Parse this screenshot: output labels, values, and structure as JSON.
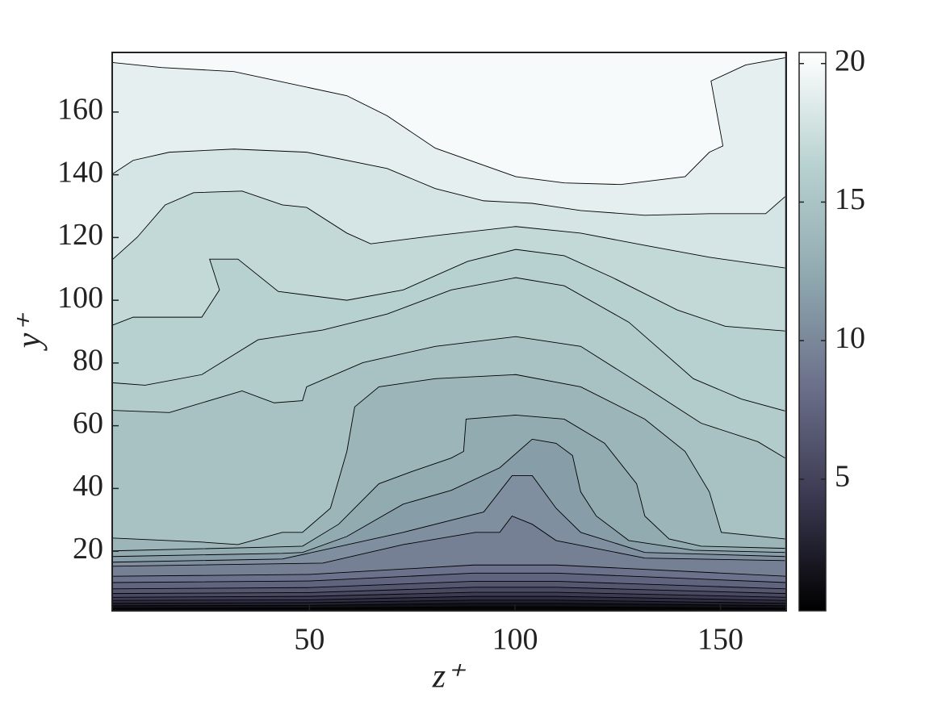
{
  "chart_data": {
    "type": "contour",
    "xlabel": "z⁺",
    "ylabel": "y⁺",
    "xlim": [
      2,
      166
    ],
    "ylim": [
      1,
      179
    ],
    "xticks": [
      50,
      100,
      150
    ],
    "yticks": [
      20,
      40,
      60,
      80,
      100,
      120,
      140,
      160
    ],
    "clim": [
      0.25,
      20.4
    ],
    "cticks": [
      5,
      10,
      15,
      20
    ],
    "colormap": [
      "#000000",
      "#3a3850",
      "#6b6f8a",
      "#8fa9b0",
      "#b8d2d1",
      "#ffffff"
    ],
    "line_color": "#000000",
    "contours": [
      {
        "level": 1,
        "x": [
          2,
          50,
          90,
          110,
          166
        ],
        "y": [
          1.8,
          1.9,
          2.3,
          2.3,
          1.8
        ]
      },
      {
        "level": 2,
        "x": [
          2,
          50,
          90,
          110,
          166
        ],
        "y": [
          2.6,
          2.7,
          3.4,
          3.4,
          2.6
        ]
      },
      {
        "level": 3,
        "x": [
          2,
          50,
          90,
          110,
          166
        ],
        "y": [
          3.4,
          3.6,
          4.4,
          4.4,
          3.4
        ]
      },
      {
        "level": 4,
        "x": [
          2,
          50,
          90,
          110,
          166
        ],
        "y": [
          4.3,
          4.5,
          5.6,
          5.6,
          4.3
        ]
      },
      {
        "level": 5,
        "x": [
          2,
          50,
          90,
          110,
          166
        ],
        "y": [
          5.3,
          5.6,
          6.9,
          6.9,
          5.3
        ]
      },
      {
        "level": 6,
        "x": [
          2,
          50,
          90,
          110,
          166
        ],
        "y": [
          6.5,
          6.8,
          8.5,
          8.5,
          6.5
        ]
      },
      {
        "level": 7,
        "x": [
          2,
          50,
          90,
          110,
          166
        ],
        "y": [
          8,
          8.4,
          10.4,
          10.4,
          8
        ]
      },
      {
        "level": 8,
        "x": [
          2,
          50,
          90,
          110,
          166
        ],
        "y": [
          10,
          10.5,
          13,
          13,
          10
        ]
      },
      {
        "level": 9,
        "x": [
          2,
          50,
          90,
          110,
          166
        ],
        "y": [
          12,
          12.6,
          15.6,
          15.6,
          12
        ]
      },
      {
        "level": 10,
        "x": [
          2,
          53.2,
          72.8,
          90.4,
          96.3,
          99.3,
          104.2,
          110,
          131.6,
          165.7
        ],
        "y": [
          15.2,
          16.2,
          22.1,
          26,
          26,
          31.2,
          28.6,
          23.4,
          17.8,
          17
        ]
      },
      {
        "level": 11,
        "x": [
          2,
          43.4,
          72.8,
          92.4,
          99.3,
          104.2,
          110,
          116,
          131.6,
          165.7
        ],
        "y": [
          16.5,
          17.5,
          26,
          32.5,
          44.1,
          44.1,
          33.7,
          26,
          19.6,
          18.3
        ]
      },
      {
        "level": 12,
        "x": [
          2,
          43.4,
          48.3,
          59.1,
          72.8,
          84.5,
          96.3,
          104.2,
          110,
          114,
          116,
          119.8,
          127.7,
          143.4,
          165.7
        ],
        "y": [
          18.3,
          19.3,
          19.6,
          24.7,
          35,
          39.4,
          46.6,
          55.7,
          54.4,
          50.5,
          38.9,
          31.2,
          23.4,
          20.3,
          19.6
        ]
      },
      {
        "level": 13,
        "x": [
          2,
          43.4,
          48.3,
          57.1,
          66.9,
          74.7,
          84.5,
          87.5,
          88.1,
          100.2,
          112,
          121.8,
          129.6,
          131.6,
          137.5,
          145.3,
          165.7
        ],
        "y": [
          20.1,
          21.4,
          21.6,
          28.6,
          41.5,
          45.3,
          49.7,
          51.8,
          62.1,
          63.4,
          62.1,
          54.4,
          41.5,
          31.2,
          23.9,
          21.6,
          20.9
        ]
      },
      {
        "level": 14,
        "x": [
          2,
          23.8,
          32.6,
          43.4,
          48.3,
          55.1,
          59.1,
          61,
          66.9,
          80.6,
          100.2,
          116,
          131.6,
          141.4,
          147.3,
          150.2,
          165.7
        ],
        "y": [
          24.2,
          22.9,
          22.1,
          26,
          26,
          33.7,
          51.8,
          66,
          72.4,
          75,
          76.3,
          72.4,
          62.1,
          51.8,
          38.9,
          26,
          23.9
        ]
      },
      {
        "level": 15.5,
        "x": [
          2,
          15.9,
          33.6,
          41.4,
          48.3,
          49.3,
          63,
          80.6,
          100.2,
          116,
          131.6,
          145.3,
          159.1,
          165.7
        ],
        "y": [
          64.9,
          64.2,
          71.1,
          67.3,
          68,
          72.4,
          80.1,
          85.3,
          88.4,
          85.3,
          72.4,
          60.8,
          54.9,
          49.7
        ]
      },
      {
        "level": 16,
        "x": [
          2,
          10,
          23.8,
          37.5,
          53.2,
          68.9,
          84.5,
          100.2,
          112,
          127.7,
          143.4,
          155.1,
          165.7
        ],
        "y": [
          73.7,
          72.9,
          76.3,
          87.4,
          90.5,
          95.6,
          103.3,
          107.2,
          104.6,
          93,
          75,
          68.5,
          64.7
        ]
      },
      {
        "level": 16.5,
        "x": [
          2,
          7.1,
          23.8,
          28.1,
          25.7,
          32.6,
          42.4,
          59.1,
          72.8,
          88.5,
          100.2,
          112,
          123.8,
          139.5,
          151.2,
          165.7
        ],
        "y": [
          92,
          94.6,
          94.6,
          103.3,
          113.1,
          113.1,
          102.8,
          100,
          103.3,
          112.4,
          116.2,
          114.2,
          107.2,
          96.9,
          91.7,
          90.2
        ]
      },
      {
        "level": 17.5,
        "x": [
          2,
          8.1,
          14.9,
          21.8,
          33.6,
          43.4,
          49.3,
          59.1,
          64.9,
          80.6,
          100.2,
          116,
          131.6,
          147.3,
          165.7
        ],
        "y": [
          112.9,
          120.1,
          130.4,
          134.3,
          134.8,
          130.4,
          129.6,
          121.4,
          118,
          120.6,
          123.5,
          121.4,
          117.5,
          113.7,
          110.3
        ]
      },
      {
        "level": 18.5,
        "x": [
          2,
          7.1,
          15.9,
          31.6,
          49.3,
          68.9,
          80.6,
          92.4,
          104.2,
          116,
          131.6,
          147.3,
          161,
          165.7
        ],
        "y": [
          140.2,
          144.6,
          147.2,
          148.2,
          147.2,
          142,
          135.6,
          131.7,
          130.9,
          128.6,
          127.1,
          127.6,
          127.6,
          133
        ]
      },
      {
        "level": 19.5,
        "x": [
          2,
          14,
          31.6,
          59.1,
          68.9,
          80.6,
          100.2,
          112,
          125.7,
          141.4,
          147.3,
          150.6,
          147.7,
          156.1,
          165.7
        ],
        "y": [
          175.8,
          174.2,
          172.9,
          165.2,
          158.8,
          148.5,
          139.4,
          137.4,
          136.9,
          139.4,
          147.2,
          149.2,
          169.9,
          175,
          177.3
        ]
      }
    ]
  }
}
